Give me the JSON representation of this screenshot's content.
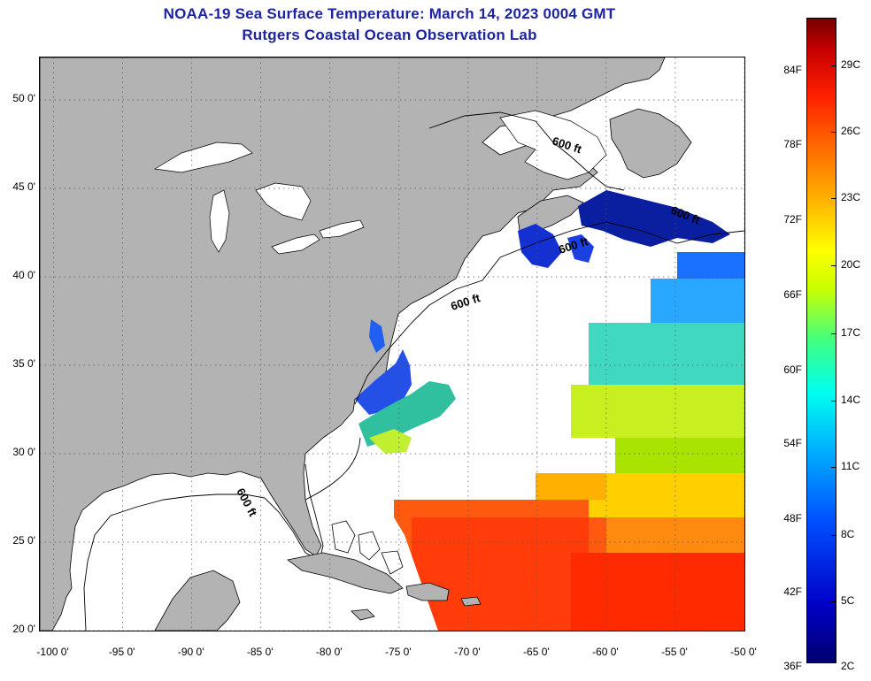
{
  "title": {
    "line1": "NOAA-19 Sea Surface Temperature:  March 14, 2023 0004 GMT",
    "line2": "Rutgers Coastal Ocean Observation Lab"
  },
  "map": {
    "lat_labels": [
      {
        "lat": 50,
        "label": "50 0'"
      },
      {
        "lat": 45,
        "label": "45 0'"
      },
      {
        "lat": 40,
        "label": "40 0'"
      },
      {
        "lat": 35,
        "label": "35 0'"
      },
      {
        "lat": 30,
        "label": "30 0'"
      },
      {
        "lat": 25,
        "label": "25 0'"
      },
      {
        "lat": 20,
        "label": "20 0'"
      }
    ],
    "lon_labels": [
      {
        "lon": -100,
        "label": "-100 0'"
      },
      {
        "lon": -95,
        "label": "-95 0'"
      },
      {
        "lon": -90,
        "label": "-90 0'"
      },
      {
        "lon": -85,
        "label": "-85 0'"
      },
      {
        "lon": -80,
        "label": "-80 0'"
      },
      {
        "lon": -75,
        "label": "-75 0'"
      },
      {
        "lon": -70,
        "label": "-70 0'"
      },
      {
        "lon": -65,
        "label": "-65 0'"
      },
      {
        "lon": -60,
        "label": "-60 0'"
      },
      {
        "lon": -55,
        "label": "-55 0'"
      },
      {
        "lon": -50,
        "label": "-50 0'"
      }
    ],
    "isobath_labels": [
      "600 ft",
      "600 ft",
      "600 ft",
      "600 ft",
      "600 ft"
    ],
    "colors": {
      "land": "#b3b3b3",
      "ocean": "#ffffff",
      "graticule": "#444444"
    }
  },
  "colorbar": {
    "fahrenheit_labels": [
      "84F",
      "78F",
      "72F",
      "66F",
      "60F",
      "54F",
      "48F",
      "42F",
      "36F"
    ],
    "celsius_labels": [
      "29C",
      "26C",
      "23C",
      "20C",
      "17C",
      "14C",
      "11C",
      "8C",
      "5C",
      "2C"
    ]
  }
}
